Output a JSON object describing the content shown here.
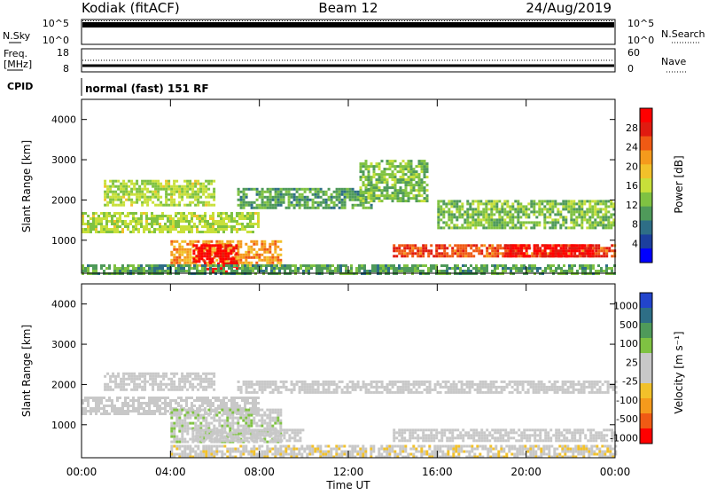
{
  "header": {
    "station": "Kodiak (fitACF)",
    "beam": "Beam 12",
    "date": "24/Aug/2019"
  },
  "top_panels": {
    "nsky_label": "N.Sky",
    "nsky_ticks": [
      "10^5",
      "10^0"
    ],
    "nsearch_label": "N.Search",
    "nsearch_ticks": [
      "10^5",
      "10^0"
    ],
    "freq_label_1": "Freq.",
    "freq_label_2": "[MHz]",
    "freq_ticks": [
      "18",
      "8"
    ],
    "nave_label": "Nave",
    "nave_ticks": [
      "60",
      "0"
    ],
    "cpid_label": "CPID",
    "cpid_text": "normal (fast) 151 RF"
  },
  "power_panel": {
    "ylabel": "Slant Range [km]",
    "yticks": [
      "4000",
      "3000",
      "2000",
      "1000"
    ],
    "colorbar_label": "Power [dB]",
    "colorbar_ticks": [
      "28",
      "24",
      "20",
      "16",
      "12",
      "8",
      "4"
    ],
    "colors": [
      "#0000ff",
      "#1c3f9e",
      "#2e6e86",
      "#4f9a5a",
      "#7fc242",
      "#c8e03a",
      "#f2c12a",
      "#f59a1c",
      "#f05a14",
      "#e01b10",
      "#ff0000"
    ]
  },
  "velocity_panel": {
    "ylabel": "Slant Range [km]",
    "yticks": [
      "4000",
      "3000",
      "2000",
      "1000"
    ],
    "colorbar_label": "Velocity [m s⁻¹]",
    "colorbar_ticks": [
      "1000",
      "500",
      "100",
      "25",
      "-25",
      "-100",
      "-500",
      "-1000"
    ],
    "colors": [
      "#2244cc",
      "#2e6e86",
      "#4f9a5a",
      "#7fc242",
      "#c8c8c8",
      "#c8c8c8",
      "#f2c12a",
      "#f59a1c",
      "#f05a14",
      "#ff0000"
    ]
  },
  "xaxis": {
    "label": "Time UT",
    "ticks": [
      "00:00",
      "04:00",
      "08:00",
      "12:00",
      "16:00",
      "20:00",
      "00:00"
    ]
  },
  "chart_data": [
    {
      "type": "heatmap",
      "title": "",
      "xlabel": "Time UT",
      "ylabel": "Slant Range [km]",
      "colorbar": "Power [dB]",
      "x_range_hours": [
        0,
        24
      ],
      "ylim": [
        180,
        4500
      ],
      "color_range": [
        0,
        30
      ],
      "regions": [
        {
          "t": [
            0,
            8
          ],
          "range": [
            1200,
            1700
          ],
          "value": 14
        },
        {
          "t": [
            1,
            6
          ],
          "range": [
            1900,
            2500
          ],
          "value": 14
        },
        {
          "t": [
            4,
            9
          ],
          "range": [
            400,
            1000
          ],
          "value": 20
        },
        {
          "t": [
            5,
            7
          ],
          "range": [
            500,
            900
          ],
          "value": 28
        },
        {
          "t": [
            5.5,
            7
          ],
          "range": [
            250,
            450
          ],
          "value": 28
        },
        {
          "t": [
            7,
            13
          ],
          "range": [
            1800,
            2300
          ],
          "value": 10
        },
        {
          "t": [
            12.5,
            15.5
          ],
          "range": [
            2000,
            3000
          ],
          "value": 12
        },
        {
          "t": [
            14,
            24
          ],
          "range": [
            600,
            900
          ],
          "value": 24
        },
        {
          "t": [
            19,
            23
          ],
          "range": [
            600,
            900
          ],
          "value": 28
        },
        {
          "t": [
            16,
            24
          ],
          "range": [
            1300,
            2000
          ],
          "value": 12
        },
        {
          "t": [
            0,
            24
          ],
          "range": [
            180,
            400
          ],
          "value": 10
        }
      ]
    },
    {
      "type": "heatmap",
      "title": "",
      "xlabel": "Time UT",
      "ylabel": "Slant Range [km]",
      "colorbar": "Velocity [m s^-1]",
      "x_range_hours": [
        0,
        24
      ],
      "ylim": [
        180,
        4500
      ],
      "color_range": [
        -1000,
        1000
      ],
      "regions": [
        {
          "t": [
            0,
            8
          ],
          "range": [
            1300,
            1700
          ],
          "value": 0
        },
        {
          "t": [
            1,
            6
          ],
          "range": [
            1900,
            2300
          ],
          "value": 0
        },
        {
          "t": [
            4,
            9
          ],
          "range": [
            600,
            1400
          ],
          "value": 100
        },
        {
          "t": [
            5,
            10
          ],
          "range": [
            600,
            900
          ],
          "value": 0
        },
        {
          "t": [
            7,
            24
          ],
          "range": [
            1800,
            2100
          ],
          "value": 0
        },
        {
          "t": [
            14,
            24
          ],
          "range": [
            600,
            900
          ],
          "value": 0
        },
        {
          "t": [
            4,
            24
          ],
          "range": [
            180,
            500
          ],
          "value": -100
        }
      ]
    }
  ]
}
